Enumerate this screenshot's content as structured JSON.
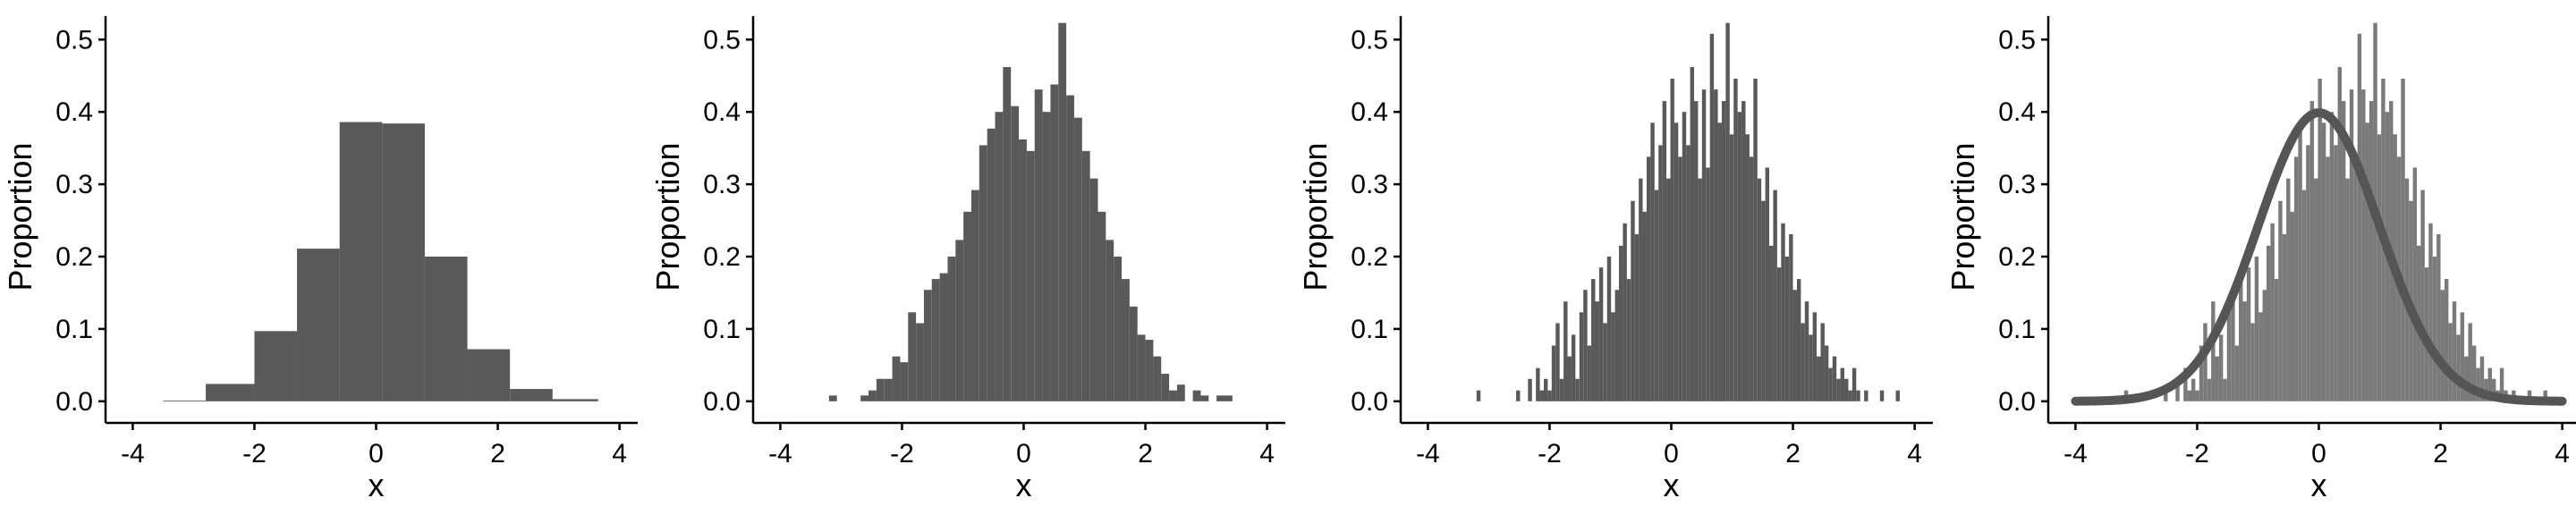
{
  "figure": {
    "background": "#ffffff",
    "bar_color": "#595959",
    "bar_color_light": "#7a7a7a",
    "curve_color": "#555555",
    "axis_color": "#000000"
  },
  "chart_data": [
    {
      "type": "bar",
      "xlabel": "x",
      "ylabel": "Proportion",
      "xlim": [
        -4.3,
        4.3
      ],
      "ylim": [
        -0.02,
        0.53
      ],
      "xticks": [
        -4,
        -2,
        0,
        2,
        4
      ],
      "xtick_labels": [
        "-4",
        "-2",
        "0",
        "2",
        "4"
      ],
      "yticks": [
        0.0,
        0.1,
        0.2,
        0.3,
        0.4,
        0.5
      ],
      "ytick_labels": [
        "0.0",
        "0.1",
        "0.2",
        "0.3",
        "0.4",
        "0.5"
      ],
      "bin_edges": [
        -3.5,
        -2.8,
        -2.0,
        -1.3,
        -0.6,
        0.1,
        0.8,
        1.5,
        2.2,
        2.9,
        3.65
      ],
      "values": [
        0.001,
        0.024,
        0.097,
        0.211,
        0.386,
        0.384,
        0.2,
        0.072,
        0.017,
        0.003
      ]
    },
    {
      "type": "bar",
      "xlabel": "x",
      "ylabel": "Proportion",
      "xlim": [
        -4.3,
        4.3
      ],
      "ylim": [
        -0.02,
        0.53
      ],
      "xticks": [
        -4,
        -2,
        0,
        2,
        4
      ],
      "xtick_labels": [
        "-4",
        "-2",
        "0",
        "2",
        "4"
      ],
      "yticks": [
        0.0,
        0.1,
        0.2,
        0.3,
        0.4,
        0.5
      ],
      "ytick_labels": [
        "0.0",
        "0.1",
        "0.2",
        "0.3",
        "0.4",
        "0.5"
      ],
      "bin_start": -3.2,
      "bin_width": 0.13,
      "values": [
        0.008,
        0,
        0,
        0,
        0.008,
        0.015,
        0.031,
        0.031,
        0.062,
        0.054,
        0.123,
        0.108,
        0.154,
        0.169,
        0.177,
        0.2,
        0.223,
        0.262,
        0.292,
        0.354,
        0.377,
        0.4,
        0.462,
        0.408,
        0.362,
        0.346,
        0.431,
        0.4,
        0.438,
        0.523,
        0.423,
        0.392,
        0.346,
        0.308,
        0.262,
        0.223,
        0.2,
        0.169,
        0.131,
        0.092,
        0.085,
        0.062,
        0.038,
        0.015,
        0.023,
        0,
        0.015,
        0.008,
        0,
        0.008,
        0.008
      ]
    },
    {
      "type": "bar",
      "xlabel": "x",
      "ylabel": "Proportion",
      "xlim": [
        -4.3,
        4.3
      ],
      "ylim": [
        -0.02,
        0.53
      ],
      "xticks": [
        -4,
        -2,
        0,
        2,
        4
      ],
      "xtick_labels": [
        "-4",
        "-2",
        "0",
        "2",
        "4"
      ],
      "yticks": [
        0.0,
        0.1,
        0.2,
        0.3,
        0.4,
        0.5
      ],
      "ytick_labels": [
        "0.0",
        "0.1",
        "0.2",
        "0.3",
        "0.4",
        "0.5"
      ],
      "bin_start": -3.2,
      "bin_width": 0.065,
      "values": [
        0.015,
        0,
        0,
        0,
        0,
        0,
        0,
        0,
        0,
        0,
        0.015,
        0,
        0,
        0.031,
        0,
        0.046,
        0.015,
        0.031,
        0.015,
        0.077,
        0.108,
        0.031,
        0.138,
        0.062,
        0.092,
        0.031,
        0.123,
        0.154,
        0.077,
        0.169,
        0.138,
        0.185,
        0.108,
        0.2,
        0.123,
        0.154,
        0.215,
        0.246,
        0.169,
        0.277,
        0.231,
        0.308,
        0.262,
        0.338,
        0.385,
        0.292,
        0.354,
        0.415,
        0.308,
        0.446,
        0.385,
        0.338,
        0.4,
        0.354,
        0.462,
        0.415,
        0.308,
        0.431,
        0.323,
        0.508,
        0.431,
        0.385,
        0.415,
        0.523,
        0.369,
        0.446,
        0.4,
        0.415,
        0.369,
        0.338,
        0.446,
        0.308,
        0.277,
        0.323,
        0.215,
        0.292,
        0.185,
        0.246,
        0.2,
        0.231,
        0.154,
        0.169,
        0.108,
        0.138,
        0.092,
        0.123,
        0.062,
        0.108,
        0.077,
        0.046,
        0.062,
        0.031,
        0.046,
        0.031,
        0.015,
        0.046,
        0.015,
        0,
        0.015,
        0,
        0,
        0,
        0.015,
        0,
        0,
        0,
        0.015
      ]
    },
    {
      "type": "bar",
      "xlabel": "x",
      "ylabel": "Proportion",
      "xlim": [
        -4.3,
        4.3
      ],
      "ylim": [
        -0.02,
        0.53
      ],
      "xticks": [
        -4,
        -2,
        0,
        2,
        4
      ],
      "xtick_labels": [
        "-4",
        "-2",
        "0",
        "2",
        "4"
      ],
      "yticks": [
        0.0,
        0.1,
        0.2,
        0.3,
        0.4,
        0.5
      ],
      "ytick_labels": [
        "0.0",
        "0.1",
        "0.2",
        "0.3",
        "0.4",
        "0.5"
      ],
      "bin_start": -3.2,
      "bin_width": 0.065,
      "values": [
        0.015,
        0,
        0,
        0,
        0,
        0,
        0,
        0,
        0,
        0,
        0.015,
        0,
        0,
        0.031,
        0,
        0.046,
        0.015,
        0.031,
        0.015,
        0.077,
        0.108,
        0.031,
        0.138,
        0.062,
        0.092,
        0.031,
        0.123,
        0.154,
        0.077,
        0.169,
        0.138,
        0.185,
        0.108,
        0.2,
        0.123,
        0.154,
        0.215,
        0.246,
        0.169,
        0.277,
        0.231,
        0.308,
        0.262,
        0.338,
        0.385,
        0.292,
        0.354,
        0.415,
        0.308,
        0.446,
        0.385,
        0.338,
        0.4,
        0.354,
        0.462,
        0.415,
        0.308,
        0.431,
        0.323,
        0.508,
        0.431,
        0.385,
        0.415,
        0.523,
        0.369,
        0.446,
        0.4,
        0.415,
        0.369,
        0.338,
        0.446,
        0.308,
        0.277,
        0.323,
        0.215,
        0.292,
        0.185,
        0.246,
        0.2,
        0.231,
        0.154,
        0.169,
        0.108,
        0.138,
        0.092,
        0.123,
        0.062,
        0.108,
        0.077,
        0.046,
        0.062,
        0.031,
        0.046,
        0.031,
        0.015,
        0.046,
        0.015,
        0,
        0.015,
        0,
        0,
        0,
        0.015,
        0,
        0,
        0,
        0.015
      ],
      "overlay": {
        "type": "line",
        "description_series": "normal density",
        "x_range": [
          -4,
          4
        ],
        "mean": 0,
        "sd": 1
      }
    }
  ]
}
